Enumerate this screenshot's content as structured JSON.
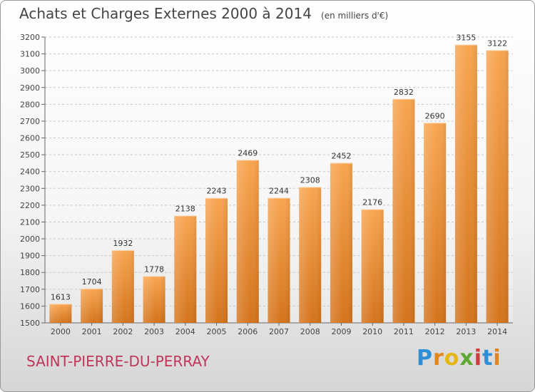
{
  "header": {
    "title": "Achats et Charges Externes 2000 à 2014",
    "unit": "(en milliers d'€)"
  },
  "footer": {
    "city": "SAINT-PIERRE-DU-PERRAY",
    "brand": "Proxiti"
  },
  "colors": {
    "bar_light": "#f8a550",
    "bar_dark": "#d4741c",
    "city": "#c0365a"
  },
  "chart_data": {
    "type": "bar",
    "categories": [
      "2000",
      "2001",
      "2002",
      "2003",
      "2004",
      "2005",
      "2006",
      "2007",
      "2008",
      "2009",
      "2010",
      "2011",
      "2012",
      "2013",
      "2014"
    ],
    "values": [
      1613,
      1704,
      1932,
      1778,
      2138,
      2243,
      2469,
      2244,
      2308,
      2452,
      2176,
      2832,
      2690,
      3155,
      3122
    ],
    "title": "Achats et Charges Externes 2000 à 2014",
    "ylim": [
      1500,
      3200
    ],
    "yticks": [
      1500,
      1600,
      1700,
      1800,
      1900,
      2000,
      2100,
      2200,
      2300,
      2400,
      2500,
      2600,
      2700,
      2800,
      2900,
      3000,
      3100,
      3200
    ],
    "grid": true,
    "data_labels": true
  }
}
